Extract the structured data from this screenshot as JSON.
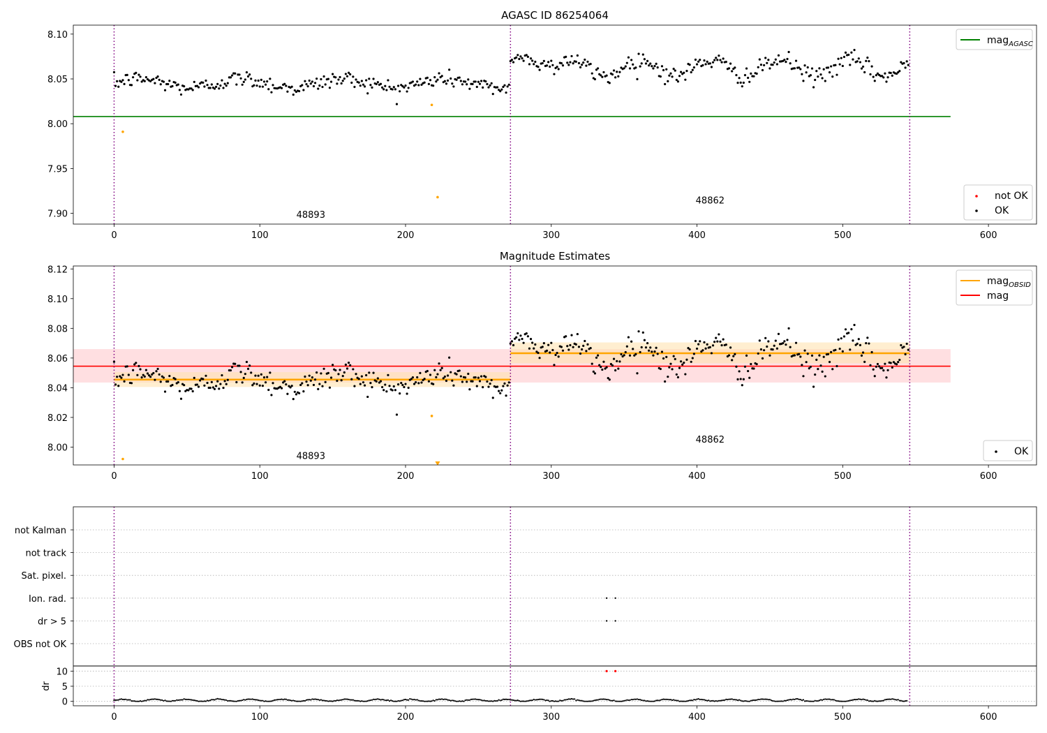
{
  "chart_data": [
    {
      "type": "scatter",
      "title": "AGASC ID 86254064",
      "xlim": [
        -28,
        633
      ],
      "ylim": [
        7.888,
        8.11
      ],
      "xticks": [
        0,
        100,
        200,
        300,
        400,
        500,
        600
      ],
      "yticks": [
        7.9,
        7.95,
        8.0,
        8.05,
        8.1
      ],
      "ytick_format": 2,
      "obs_boundaries": [
        0,
        272,
        546
      ],
      "obs_labels": [
        {
          "text": "48893",
          "x": 135,
          "y": 7.895
        },
        {
          "text": "48862",
          "x": 409,
          "y": 7.911
        }
      ],
      "reference_lines": [
        {
          "name": "mag",
          "subscript": "AGASC",
          "y": 8.008,
          "x_start": -28,
          "x_end": 574,
          "color": "#008000"
        }
      ],
      "ok_series": {
        "name": "OK",
        "color": "#000000",
        "n": 545,
        "segments": [
          {
            "x0": 0,
            "x1": 271,
            "mean": 8.045,
            "amp": 0.005,
            "noise": 0.0045,
            "period": 70
          },
          {
            "x0": 272,
            "x1": 300,
            "mean": 8.07,
            "amp": 0.004,
            "noise": 0.003,
            "period": 30
          },
          {
            "x0": 301,
            "x1": 545,
            "mean": 8.062,
            "amp": 0.009,
            "noise": 0.005,
            "period": 48
          }
        ]
      },
      "not_ok_points": [
        {
          "x": 6,
          "y": 7.991
        },
        {
          "x": 218,
          "y": 8.021
        },
        {
          "x": 222,
          "y": 7.918
        }
      ],
      "legends": [
        {
          "position": "top-right",
          "entries": [
            {
              "kind": "line",
              "label": "mag",
              "subscript": "AGASC",
              "color": "#008000"
            }
          ]
        },
        {
          "position": "bottom-right",
          "entries": [
            {
              "kind": "dot",
              "label": "not OK",
              "color": "#ff0000"
            },
            {
              "kind": "dot",
              "label": "OK",
              "color": "#000000"
            }
          ]
        }
      ]
    },
    {
      "type": "scatter",
      "title": "Magnitude Estimates",
      "xlim": [
        -28,
        633
      ],
      "ylim": [
        7.988,
        8.122
      ],
      "xticks": [
        0,
        100,
        200,
        300,
        400,
        500,
        600
      ],
      "yticks": [
        8.0,
        8.02,
        8.04,
        8.06,
        8.08,
        8.1,
        8.12
      ],
      "ytick_format": 2,
      "obs_boundaries": [
        0,
        272,
        546
      ],
      "obs_labels": [
        {
          "text": "48893",
          "x": 135,
          "y": 7.992
        },
        {
          "text": "48862",
          "x": 409,
          "y": 8.003
        }
      ],
      "reference_lines": [
        {
          "name": "mag",
          "y": 8.0545,
          "x_start": -28,
          "x_end": 574,
          "color": "#ff0000",
          "band": [
            8.0435,
            8.066
          ],
          "band_color": "#ffc0c4"
        },
        {
          "name": "mag",
          "subscript": "OBSID",
          "segments": [
            {
              "x0": 0,
              "x1": 272,
              "y": 8.0455,
              "band": [
                8.0405,
                8.0505
              ]
            },
            {
              "x0": 272,
              "x1": 546,
              "y": 8.0632,
              "band": [
                8.0565,
                8.0705
              ]
            }
          ],
          "color": "#ffa500",
          "band_color": "#ffe3b0"
        }
      ],
      "ok_series": {
        "name": "OK",
        "color": "#000000",
        "n": 545,
        "segments": [
          {
            "x0": 0,
            "x1": 271,
            "mean": 8.045,
            "amp": 0.005,
            "noise": 0.0045,
            "period": 70
          },
          {
            "x0": 272,
            "x1": 300,
            "mean": 8.07,
            "amp": 0.004,
            "noise": 0.003,
            "period": 30
          },
          {
            "x0": 301,
            "x1": 545,
            "mean": 8.062,
            "amp": 0.009,
            "noise": 0.005,
            "period": 48
          }
        ]
      },
      "not_ok_points": [
        {
          "x": 6,
          "y": 7.992
        },
        {
          "x": 218,
          "y": 8.021
        },
        {
          "x": 222,
          "y": 7.988,
          "marker": "down-triangle"
        }
      ],
      "legends": [
        {
          "position": "top-right",
          "entries": [
            {
              "kind": "line",
              "label": "mag",
              "subscript": "OBSID",
              "color": "#ffa500"
            },
            {
              "kind": "line",
              "label": "mag",
              "color": "#ff0000"
            }
          ]
        },
        {
          "position": "bottom-right",
          "entries": [
            {
              "kind": "dot",
              "label": "OK",
              "color": "#000000"
            }
          ]
        }
      ]
    },
    {
      "type": "scatter",
      "title": "",
      "xlim": [
        -28,
        633
      ],
      "xticks": [
        0,
        100,
        200,
        300,
        400,
        500,
        600
      ],
      "obs_boundaries": [
        0,
        272,
        546
      ],
      "flag_rows": [
        "not Kalman",
        "not track",
        "Sat. pixel.",
        "Ion. rad.",
        "dr > 5",
        "OBS not OK"
      ],
      "flagged_points": [
        {
          "row": "Ion. rad.",
          "x": 338
        },
        {
          "row": "Ion. rad.",
          "x": 344
        },
        {
          "row": "dr > 5",
          "x": 338
        },
        {
          "row": "dr > 5",
          "x": 344
        }
      ],
      "dr": {
        "ylabel": "dr",
        "ylim": [
          -1,
          11
        ],
        "yticks": [
          0,
          5,
          10
        ],
        "n": 545,
        "base": 0.35,
        "amp": 0.35,
        "period": 22,
        "not_ok_points": [
          {
            "x": 338,
            "y": 10
          },
          {
            "x": 344,
            "y": 10
          }
        ]
      }
    }
  ]
}
